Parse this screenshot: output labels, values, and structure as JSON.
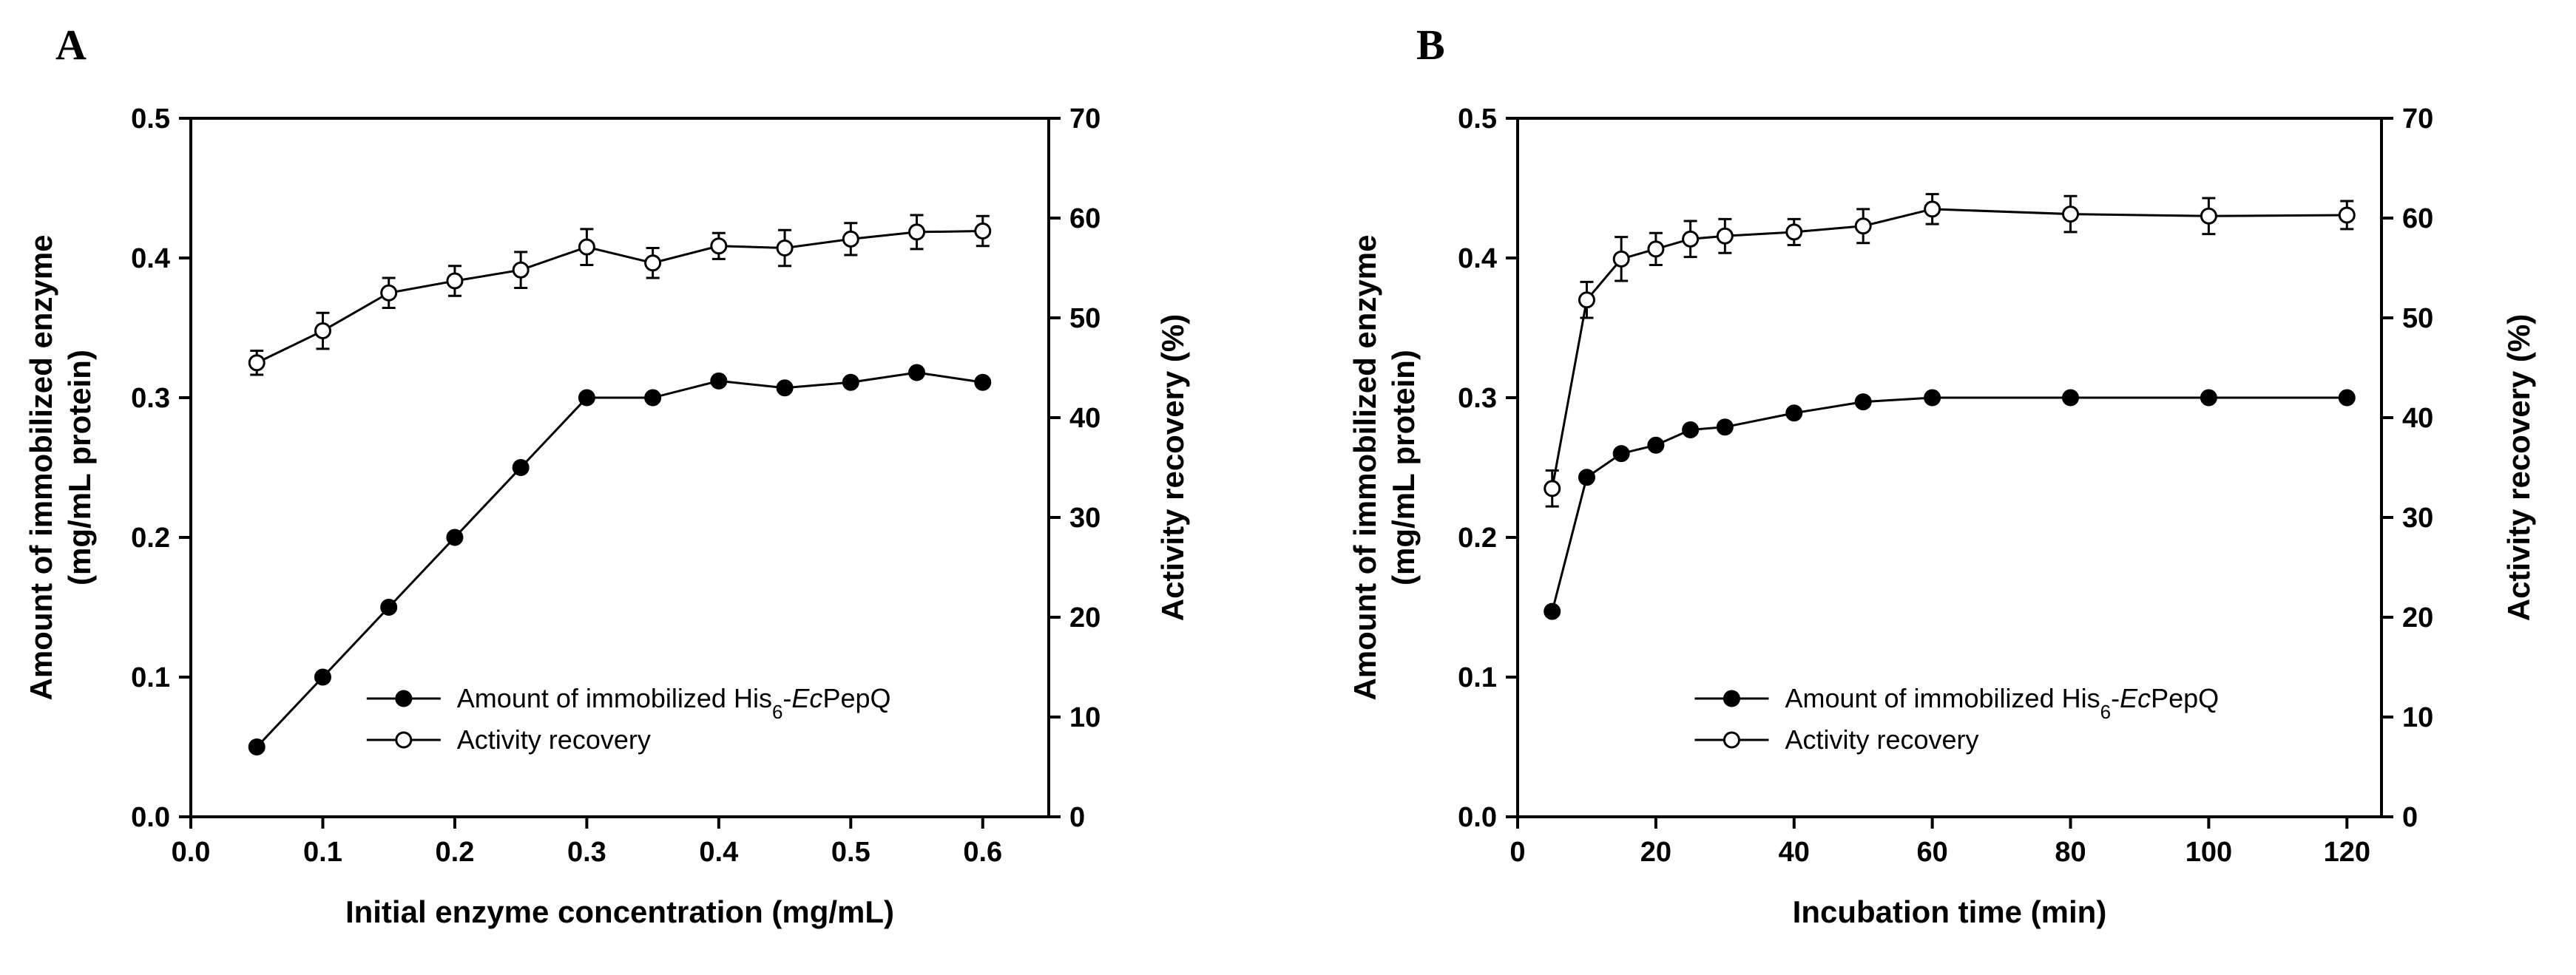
{
  "chart_data": [
    {
      "type": "line",
      "panel_label": "A",
      "xlabel": "Initial enzyme concentration (mg/mL)",
      "ylabel_left": [
        "Amount of immobilized enzyme",
        "(mg/mL protein)"
      ],
      "ylabel_right": "Activity recovery (%)",
      "xlim": [
        0.0,
        0.65
      ],
      "ylim_left": [
        0.0,
        0.5
      ],
      "ylim_right": [
        0,
        70
      ],
      "x_ticks": [
        "0.0",
        "0.1",
        "0.2",
        "0.3",
        "0.4",
        "0.5",
        "0.6"
      ],
      "y_left_ticks": [
        "0.0",
        "0.1",
        "0.2",
        "0.3",
        "0.4",
        "0.5"
      ],
      "y_right_ticks": [
        "0",
        "10",
        "20",
        "30",
        "40",
        "50",
        "60",
        "70"
      ],
      "legend_position": "bottom-right",
      "series": [
        {
          "name": "Amount of immobilized His6-EcPepQ",
          "legend_parts": [
            "Amount of immobilized His",
            "6",
            "-",
            "Ec",
            "PepQ"
          ],
          "axis": "left",
          "marker": "filled-circle",
          "x": [
            0.05,
            0.1,
            0.15,
            0.2,
            0.25,
            0.3,
            0.35,
            0.4,
            0.45,
            0.5,
            0.55,
            0.6
          ],
          "y": [
            0.05,
            0.1,
            0.15,
            0.2,
            0.25,
            0.3,
            0.3,
            0.312,
            0.307,
            0.311,
            0.318,
            0.311
          ]
        },
        {
          "name": "Activity recovery",
          "axis": "right",
          "marker": "open-circle",
          "x": [
            0.05,
            0.1,
            0.15,
            0.2,
            0.25,
            0.3,
            0.35,
            0.4,
            0.45,
            0.5,
            0.55,
            0.6
          ],
          "y": [
            45.5,
            48.7,
            52.5,
            53.7,
            54.8,
            57.1,
            55.5,
            57.2,
            57.0,
            57.9,
            58.6,
            58.7
          ],
          "err": [
            1.2,
            1.8,
            1.5,
            1.5,
            1.8,
            1.8,
            1.5,
            1.3,
            1.8,
            1.6,
            1.7,
            1.5
          ]
        }
      ]
    },
    {
      "type": "line",
      "panel_label": "B",
      "xlabel": "Incubation time (min)",
      "ylabel_left": [
        "Amount of immobilized enzyme",
        "(mg/mL protein)"
      ],
      "ylabel_right": "Activity recovery (%)",
      "xlim": [
        0,
        125
      ],
      "ylim_left": [
        0.0,
        0.5
      ],
      "ylim_right": [
        0,
        70
      ],
      "x_ticks": [
        "0",
        "20",
        "40",
        "60",
        "80",
        "100",
        "120"
      ],
      "y_left_ticks": [
        "0.0",
        "0.1",
        "0.2",
        "0.3",
        "0.4",
        "0.5"
      ],
      "y_right_ticks": [
        "0",
        "10",
        "20",
        "30",
        "40",
        "50",
        "60",
        "70"
      ],
      "legend_position": "bottom-right",
      "series": [
        {
          "name": "Amount of immobilized His6-EcPepQ",
          "legend_parts": [
            "Amount of immobilized His",
            "6",
            "-",
            "Ec",
            "PepQ"
          ],
          "axis": "left",
          "marker": "filled-circle",
          "x": [
            5,
            10,
            15,
            20,
            25,
            30,
            40,
            50,
            60,
            80,
            100,
            120
          ],
          "y": [
            0.147,
            0.243,
            0.26,
            0.266,
            0.277,
            0.279,
            0.289,
            0.297,
            0.3,
            0.3,
            0.3,
            0.3
          ]
        },
        {
          "name": "Activity recovery",
          "axis": "right",
          "marker": "open-circle",
          "x": [
            5,
            10,
            15,
            20,
            25,
            30,
            40,
            50,
            60,
            80,
            100,
            120
          ],
          "y": [
            32.9,
            51.8,
            55.9,
            56.9,
            57.9,
            58.2,
            58.6,
            59.2,
            60.9,
            60.4,
            60.2,
            60.3
          ],
          "err": [
            1.8,
            1.8,
            2.2,
            1.6,
            1.8,
            1.7,
            1.3,
            1.7,
            1.5,
            1.8,
            1.8,
            1.4
          ]
        }
      ]
    }
  ]
}
